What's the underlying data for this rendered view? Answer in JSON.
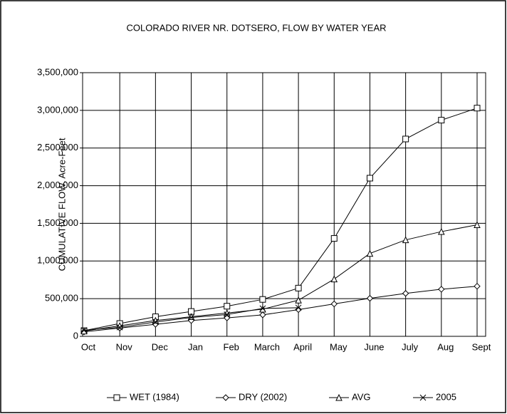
{
  "chart_data": {
    "type": "line",
    "title": "COLORADO RIVER NR. DOTSERO, FLOW BY WATER YEAR",
    "y_label": "CUMULATIVE FLOW, Acre-Feet",
    "categories": [
      "Oct",
      "Nov",
      "Dec",
      "Jan",
      "Feb",
      "March",
      "April",
      "May",
      "June",
      "July",
      "Aug",
      "Sept"
    ],
    "series": [
      {
        "name": "WET (1984)",
        "color": "#000000",
        "marker": "square",
        "values": [
          75000,
          170000,
          260000,
          330000,
          400000,
          490000,
          640000,
          1300000,
          2100000,
          2620000,
          2870000,
          3030000
        ]
      },
      {
        "name": "DRY (2002)",
        "color": "#000000",
        "marker": "diamond",
        "values": [
          60000,
          110000,
          160000,
          210000,
          245000,
          285000,
          355000,
          430000,
          505000,
          570000,
          625000,
          665000
        ]
      },
      {
        "name": "AVG",
        "color": "#000000",
        "marker": "triangle",
        "values": [
          70000,
          140000,
          210000,
          260000,
          310000,
          360000,
          480000,
          760000,
          1100000,
          1280000,
          1390000,
          1480000
        ]
      },
      {
        "name": "2005",
        "color": "#000000",
        "marker": "x",
        "values": [
          80000,
          120000,
          190000,
          250000,
          290000,
          370000,
          380000,
          null,
          null,
          null,
          null,
          null
        ]
      }
    ],
    "ylim": [
      0,
      3500000
    ],
    "yticks": [
      0,
      {
        "value": 500000,
        "label": "500,000"
      },
      {
        "value": 1000000,
        "label": "1,000,000"
      },
      {
        "value": 1500000,
        "label": "1,500,000"
      },
      {
        "value": 2000000,
        "label": "2,000,000"
      },
      {
        "value": 2500000,
        "label": "2,500,000"
      },
      {
        "value": 3000000,
        "label": "3,000,000"
      },
      {
        "value": 3500000,
        "label": "3,500,000"
      }
    ],
    "grid": true,
    "legend": "bottom"
  }
}
